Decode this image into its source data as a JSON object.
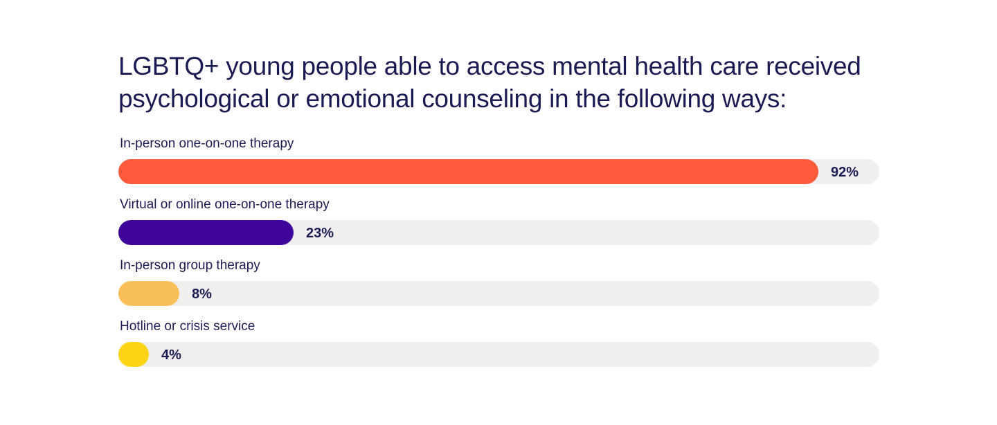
{
  "chart_data": {
    "type": "bar",
    "orientation": "horizontal",
    "title": "LGBTQ+ young people able to access mental health care received psychological or emotional counseling in the following ways:",
    "categories": [
      "In-person one-on-one therapy",
      "Virtual or online one-on-one therapy",
      "In-person group therapy",
      "Hotline or crisis service"
    ],
    "values": [
      92,
      23,
      8,
      4
    ],
    "value_labels": [
      "92%",
      "23%",
      "8%",
      "4%"
    ],
    "xlim": [
      0,
      100
    ],
    "unit": "%",
    "grid": false,
    "legend": "none",
    "colors": [
      "#ff5a3c",
      "#3f0499",
      "#f9bf5a",
      "#ffd414"
    ],
    "track_color": "#efefef",
    "text_color": "#1c1a52"
  }
}
